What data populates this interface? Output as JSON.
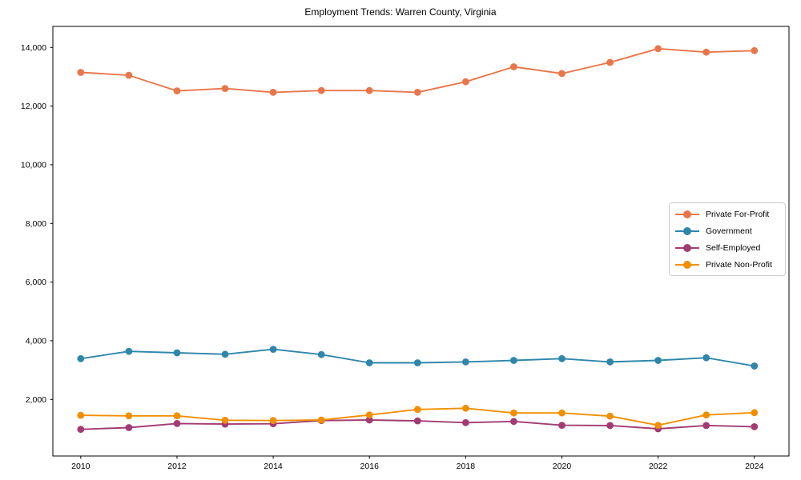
{
  "title": "Employment Trends: Warren County, Virginia",
  "chart_data": {
    "type": "line",
    "x": [
      2010,
      2011,
      2012,
      2013,
      2014,
      2015,
      2016,
      2017,
      2018,
      2019,
      2020,
      2021,
      2022,
      2023,
      2024
    ],
    "series": [
      {
        "name": "Private For-Profit",
        "color": "#E8764A",
        "values": [
          13150,
          13050,
          12520,
          12600,
          12470,
          12530,
          12530,
          12470,
          12830,
          13340,
          13110,
          13490,
          13960,
          13840,
          13890
        ]
      },
      {
        "name": "Government",
        "color": "#2E86AB",
        "values": [
          3390,
          3640,
          3590,
          3540,
          3710,
          3530,
          3250,
          3250,
          3280,
          3330,
          3390,
          3280,
          3330,
          3420,
          3140
        ]
      },
      {
        "name": "Self-Employed",
        "color": "#A23B72",
        "values": [
          980,
          1040,
          1180,
          1160,
          1170,
          1280,
          1300,
          1270,
          1210,
          1250,
          1120,
          1110,
          1000,
          1110,
          1070
        ]
      },
      {
        "name": "Private Non-Profit",
        "color": "#F18F01",
        "values": [
          1460,
          1440,
          1440,
          1290,
          1280,
          1300,
          1470,
          1660,
          1700,
          1540,
          1540,
          1430,
          1120,
          1470,
          1550
        ]
      }
    ],
    "xticks": [
      2010,
      2012,
      2014,
      2016,
      2018,
      2020,
      2022,
      2024
    ],
    "yticks": [
      2000,
      4000,
      6000,
      8000,
      10000,
      12000,
      14000
    ],
    "ytick_labels": [
      "2,000",
      "4,000",
      "6,000",
      "8,000",
      "10,000",
      "12,000",
      "14,000"
    ],
    "xlim": [
      2009.42,
      2024.72
    ],
    "ylim": [
      72,
      14717
    ],
    "grid": false,
    "legend_position": "center right",
    "title": "Employment Trends: Warren County, Virginia",
    "xlabel": "",
    "ylabel": ""
  }
}
